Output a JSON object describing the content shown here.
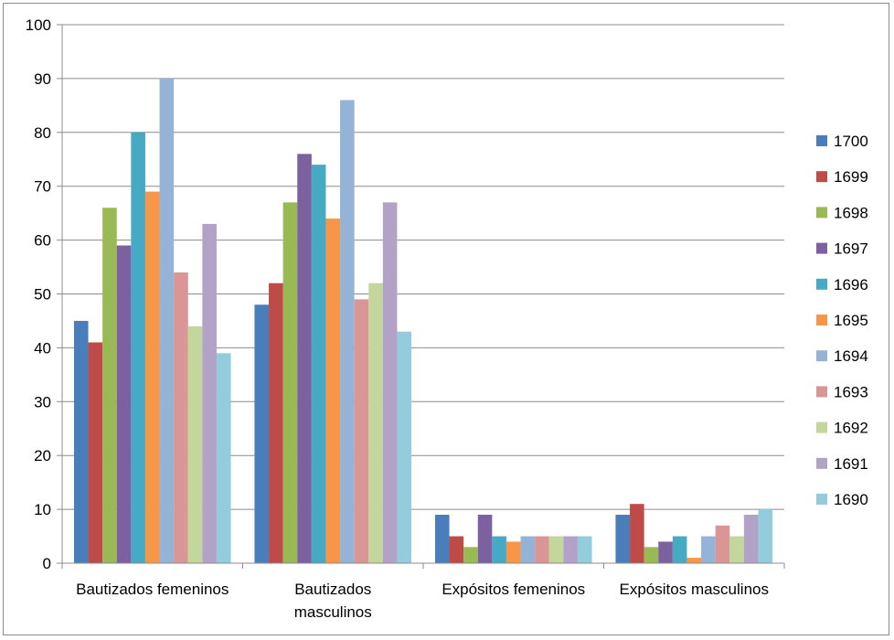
{
  "chart_data": {
    "type": "bar",
    "title": "",
    "xlabel": "",
    "ylabel": "",
    "ylim": [
      0,
      100
    ],
    "yticks": [
      0,
      10,
      20,
      30,
      40,
      50,
      60,
      70,
      80,
      90,
      100
    ],
    "grid": true,
    "legend": "right",
    "categories": [
      [
        "Bautizados femeninos"
      ],
      [
        "Bautizados",
        "masculinos"
      ],
      [
        "Expósitos femeninos"
      ],
      [
        "Expósitos masculinos"
      ]
    ],
    "series": [
      {
        "name": "1700",
        "color": "#4a7ebb",
        "values": [
          45,
          48,
          9,
          9
        ]
      },
      {
        "name": "1699",
        "color": "#be4b48",
        "values": [
          41,
          52,
          5,
          11
        ]
      },
      {
        "name": "1698",
        "color": "#98b954",
        "values": [
          66,
          67,
          3,
          3
        ]
      },
      {
        "name": "1697",
        "color": "#7d60a0",
        "values": [
          59,
          76,
          9,
          4
        ]
      },
      {
        "name": "1696",
        "color": "#46aac5",
        "values": [
          80,
          74,
          5,
          5
        ]
      },
      {
        "name": "1695",
        "color": "#f79646",
        "values": [
          69,
          64,
          4,
          1
        ]
      },
      {
        "name": "1694",
        "color": "#95b3d7",
        "values": [
          90,
          86,
          5,
          5
        ]
      },
      {
        "name": "1693",
        "color": "#d99694",
        "values": [
          54,
          49,
          5,
          7
        ]
      },
      {
        "name": "1692",
        "color": "#c3d69b",
        "values": [
          44,
          52,
          5,
          5
        ]
      },
      {
        "name": "1691",
        "color": "#b3a2c7",
        "values": [
          63,
          67,
          5,
          9
        ]
      },
      {
        "name": "1690",
        "color": "#93cddd",
        "values": [
          39,
          43,
          5,
          10
        ]
      }
    ]
  }
}
